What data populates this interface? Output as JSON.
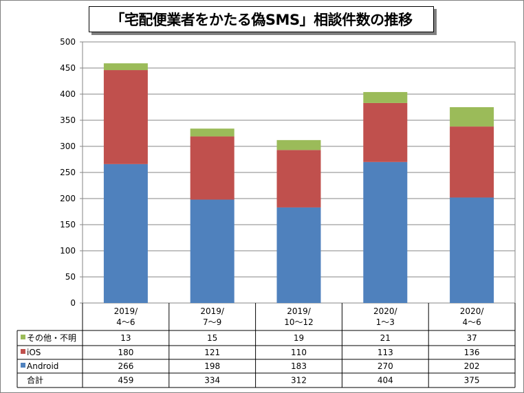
{
  "title": "「宅配便業者をかたる偽SMS」相談件数の推移",
  "chart_data": {
    "type": "bar",
    "stacked": true,
    "title": "「宅配便業者をかたる偽SMS」相談件数の推移",
    "categories": [
      [
        "2019/",
        "4～6"
      ],
      [
        "2019/",
        "7～9"
      ],
      [
        "2019/",
        "10～12"
      ],
      [
        "2020/",
        "1～3"
      ],
      [
        "2020/",
        "4～6"
      ]
    ],
    "series": [
      {
        "name": "Android",
        "color": "#4f81bd",
        "values": [
          266,
          198,
          183,
          270,
          202
        ]
      },
      {
        "name": "iOS",
        "color": "#c0504d",
        "values": [
          180,
          121,
          110,
          113,
          136
        ]
      },
      {
        "name": "その他・不明",
        "color": "#9bbb59",
        "values": [
          13,
          15,
          19,
          21,
          37
        ]
      }
    ],
    "totals": {
      "name": "合計",
      "values": [
        459,
        334,
        312,
        404,
        375
      ]
    },
    "ylim": [
      0,
      500
    ],
    "yticks": [
      0,
      50,
      100,
      150,
      200,
      250,
      300,
      350,
      400,
      450,
      500
    ],
    "grid": true,
    "legend_placement": "data-table"
  }
}
